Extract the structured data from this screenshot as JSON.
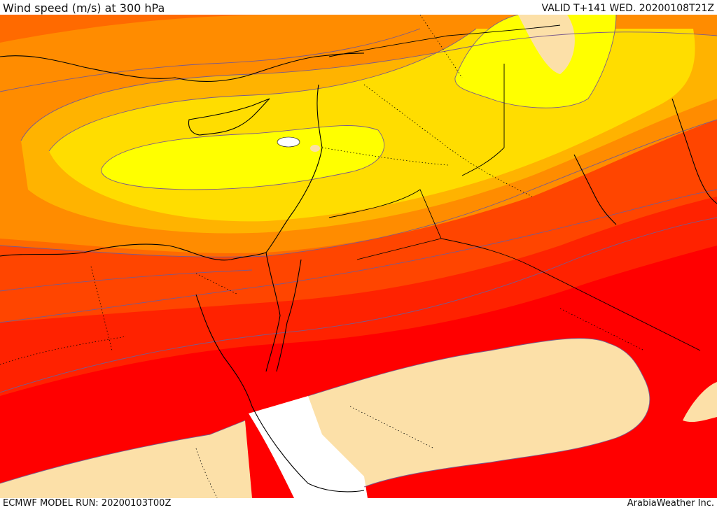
{
  "header": {
    "title": "Wind speed (m/s) at 300 hPa",
    "valid": "VALID T+141 WED. 20200108T21Z"
  },
  "footer": {
    "model_run": "ECMWF MODEL RUN: 20200103T00Z",
    "credit": "ArabiaWeather Inc."
  },
  "colors": {
    "band_1": "#ffff00",
    "band_2": "#ffdd00",
    "band_3": "#ffb300",
    "band_4": "#ff8c00",
    "band_5": "#ff6a00",
    "band_6": "#ff4500",
    "band_7": "#ff2200",
    "band_8": "#ff0000",
    "calm": "#fce0a8",
    "missing": "#ffffff",
    "contour": "#7a5a8c",
    "coast": "#000000"
  }
}
